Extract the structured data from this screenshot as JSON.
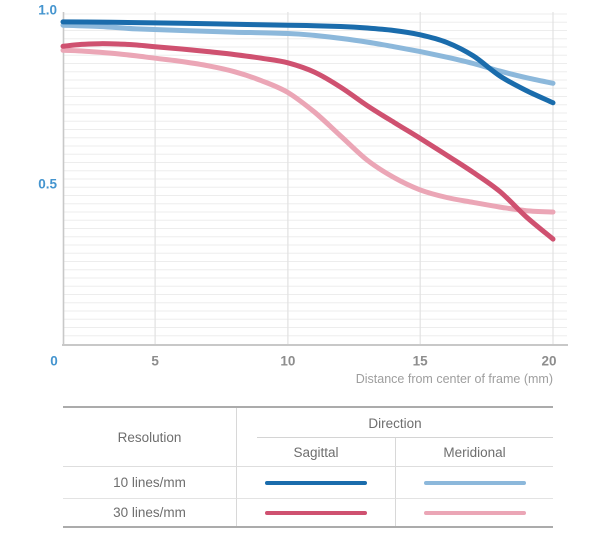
{
  "chart_data": {
    "type": "line",
    "title": "",
    "xlabel": "Distance from center of frame (mm)",
    "ylabel": "",
    "xlim": [
      0,
      20
    ],
    "ylim": [
      0,
      1.0
    ],
    "x_ticks": [
      0,
      5,
      10,
      15,
      20
    ],
    "x_tick_labels": [
      "0",
      "5",
      "10",
      "15",
      "20"
    ],
    "y_ticks": [
      1.0,
      0.5
    ],
    "y_tick_labels": [
      "1.0",
      "0.5"
    ],
    "grid": true,
    "minor_y_grid_step": 0.025,
    "colors": {
      "axis_highlight_blue": "#4595cf",
      "axis_tick_gray": "#8d8d8d",
      "caption_gray": "#9e9e9e",
      "grid_minor": "#ededed",
      "grid_vertical": "#e2e2e2",
      "axis_line": "#c8c8c8"
    },
    "x_scale_anchors": [
      [
        0,
        0.0
      ],
      [
        5,
        0.188
      ],
      [
        10,
        0.459
      ],
      [
        15,
        0.729
      ],
      [
        20,
        1.0
      ]
    ],
    "series": [
      {
        "name": "10 lines/mm Meridional",
        "color": "#8cb8db",
        "points": [
          [
            0,
            0.966
          ],
          [
            2,
            0.962
          ],
          [
            4,
            0.955
          ],
          [
            6,
            0.95
          ],
          [
            8,
            0.945
          ],
          [
            10,
            0.941
          ],
          [
            11,
            0.935
          ],
          [
            12,
            0.926
          ],
          [
            13,
            0.915
          ],
          [
            14,
            0.901
          ],
          [
            15,
            0.886
          ],
          [
            16,
            0.869
          ],
          [
            17,
            0.85
          ],
          [
            18,
            0.827
          ],
          [
            19,
            0.807
          ],
          [
            20,
            0.79
          ]
        ]
      },
      {
        "name": "30 lines/mm Meridional",
        "color": "#eba6b6",
        "points": [
          [
            0,
            0.89
          ],
          [
            1,
            0.888
          ],
          [
            2,
            0.884
          ],
          [
            3,
            0.879
          ],
          [
            4,
            0.873
          ],
          [
            5,
            0.866
          ],
          [
            6,
            0.856
          ],
          [
            7,
            0.843
          ],
          [
            8,
            0.825
          ],
          [
            9,
            0.798
          ],
          [
            10,
            0.762
          ],
          [
            11,
            0.703
          ],
          [
            12,
            0.63
          ],
          [
            13,
            0.557
          ],
          [
            14,
            0.505
          ],
          [
            15,
            0.467
          ],
          [
            16,
            0.444
          ],
          [
            17,
            0.429
          ],
          [
            18,
            0.415
          ],
          [
            19,
            0.404
          ],
          [
            20,
            0.4
          ]
        ]
      },
      {
        "name": "30 lines/mm Sagittal",
        "color": "#cf5170",
        "points": [
          [
            0,
            0.902
          ],
          [
            1,
            0.908
          ],
          [
            2,
            0.91
          ],
          [
            3,
            0.909
          ],
          [
            4,
            0.906
          ],
          [
            5,
            0.901
          ],
          [
            6,
            0.894
          ],
          [
            7,
            0.886
          ],
          [
            8,
            0.877
          ],
          [
            9,
            0.866
          ],
          [
            10,
            0.852
          ],
          [
            11,
            0.824
          ],
          [
            12,
            0.778
          ],
          [
            13,
            0.722
          ],
          [
            14,
            0.672
          ],
          [
            15,
            0.623
          ],
          [
            16,
            0.572
          ],
          [
            17,
            0.52
          ],
          [
            18,
            0.462
          ],
          [
            19,
            0.385
          ],
          [
            20,
            0.318
          ]
        ]
      },
      {
        "name": "10 lines/mm Sagittal",
        "color": "#1a6cac",
        "points": [
          [
            0,
            0.976
          ],
          [
            2,
            0.9755
          ],
          [
            4,
            0.974
          ],
          [
            6,
            0.972
          ],
          [
            8,
            0.969
          ],
          [
            10,
            0.966
          ],
          [
            11,
            0.9645
          ],
          [
            12,
            0.962
          ],
          [
            13,
            0.9575
          ],
          [
            14,
            0.95
          ],
          [
            15,
            0.937
          ],
          [
            16,
            0.914
          ],
          [
            17,
            0.873
          ],
          [
            18,
            0.812
          ],
          [
            19,
            0.768
          ],
          [
            20,
            0.731
          ]
        ]
      }
    ],
    "legend_position": "bottom-table"
  },
  "legend": {
    "resolution_header": "Resolution",
    "direction_header": "Direction",
    "col_sagittal": "Sagittal",
    "col_meridional": "Meridional",
    "rows": [
      {
        "label": "10 lines/mm"
      },
      {
        "label": "30 lines/mm"
      }
    ]
  }
}
